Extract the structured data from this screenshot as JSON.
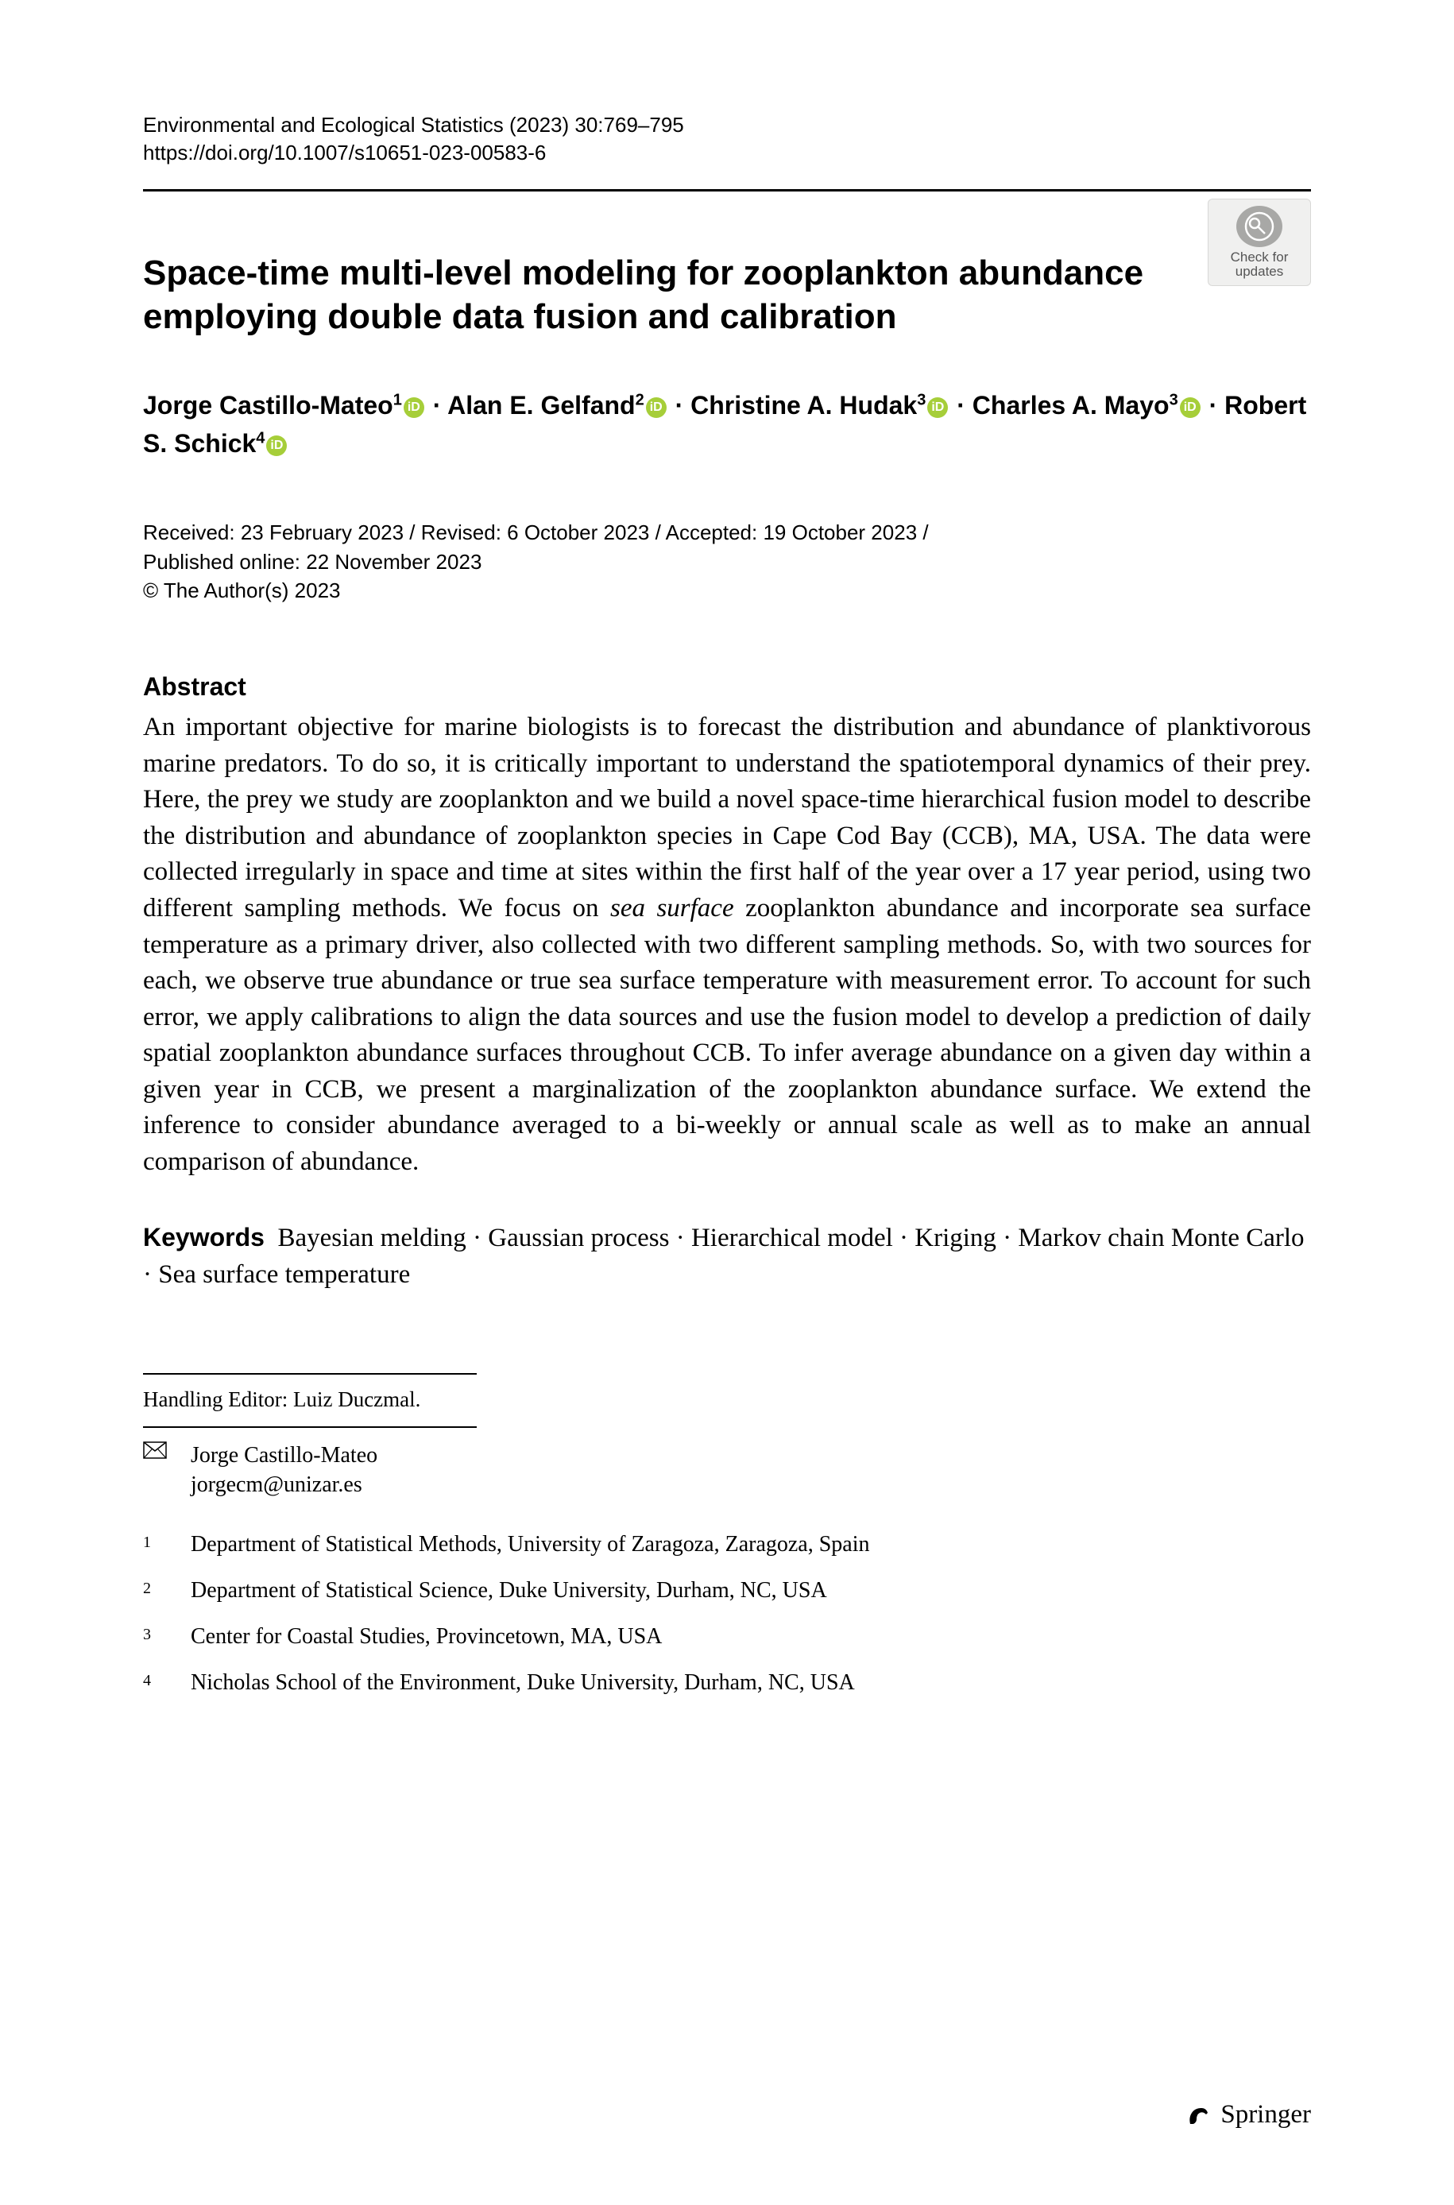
{
  "header": {
    "journal_line": "Environmental and Ecological Statistics (2023) 30:769–795",
    "doi_line": "https://doi.org/10.1007/s10651-023-00583-6"
  },
  "check_updates": {
    "line1": "Check for",
    "line2": "updates"
  },
  "title": "Space-time multi-level modeling for zooplankton abundance employing double data fusion and calibration",
  "authors": [
    {
      "name": "Jorge Castillo-Mateo",
      "affil_sup": "1",
      "orcid": true
    },
    {
      "name": "Alan E. Gelfand",
      "affil_sup": "2",
      "orcid": true
    },
    {
      "name": "Christine A. Hudak",
      "affil_sup": "3",
      "orcid": true
    },
    {
      "name": "Charles A. Mayo",
      "affil_sup": "3",
      "orcid": true
    },
    {
      "name": "Robert S. Schick",
      "affil_sup": "4",
      "orcid": true
    }
  ],
  "author_separator": " · ",
  "dates": {
    "line1": "Received: 23 February 2023 / Revised: 6 October 2023 / Accepted: 19 October 2023 /",
    "line2": "Published online: 22 November 2023",
    "line3": "© The Author(s) 2023"
  },
  "abstract": {
    "heading": "Abstract",
    "body_parts": [
      "An important objective for marine biologists is to forecast the distribution and abundance of planktivorous marine predators. To do so, it is critically important to understand the spatiotemporal dynamics of their prey. Here, the prey we study are zooplankton and we build a novel space-time hierarchical fusion model to describe the distribution and abundance of zooplankton species in Cape Cod Bay (CCB), MA, USA. The data were collected irregularly in space and time at sites within the first half of the year over a 17 year period, using two different sampling methods. We focus on ",
      "sea surface",
      " zooplankton abundance and incorporate sea surface temperature as a primary driver, also collected with two different sampling methods. So, with two sources for each, we observe true abundance or true sea surface temperature with measurement error. To account for such error, we apply calibrations to align the data sources and use the fusion model to develop a prediction of daily spatial zooplankton abundance surfaces throughout CCB. To infer average abundance on a given day within a given year in CCB, we present a marginalization of the zooplankton abundance surface. We extend the inference to consider abundance averaged to a bi-weekly or annual scale as well as to make an annual comparison of abundance."
    ]
  },
  "keywords": {
    "label": "Keywords",
    "text": "Bayesian melding · Gaussian process · Hierarchical model · Kriging · Markov chain Monte Carlo · Sea surface temperature"
  },
  "handling_editor": "Handling Editor: Luiz Duczmal.",
  "correspondence": {
    "name": "Jorge Castillo-Mateo",
    "email": "jorgecm@unizar.es"
  },
  "affiliations": [
    {
      "num": "1",
      "text": "Department of Statistical Methods, University of Zaragoza, Zaragoza, Spain"
    },
    {
      "num": "2",
      "text": "Department of Statistical Science, Duke University, Durham, NC, USA"
    },
    {
      "num": "3",
      "text": "Center for Coastal Studies, Provincetown, MA, USA"
    },
    {
      "num": "4",
      "text": "Nicholas School of the Environment, Duke University, Durham, NC, USA"
    }
  ],
  "publisher": "Springer",
  "colors": {
    "orcid_green": "#a6ce39",
    "rule_black": "#000000",
    "badge_bg": "#f0f0ef",
    "badge_border": "#d8d8d6",
    "badge_circle": "#a8a8a6"
  }
}
